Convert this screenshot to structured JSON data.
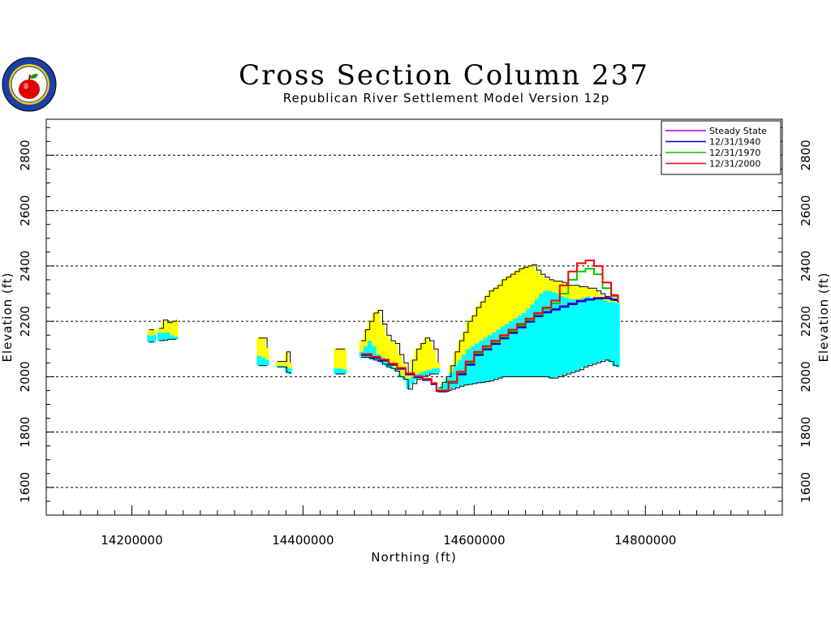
{
  "chart_data": {
    "type": "area",
    "title": "Cross Section Column 237",
    "subtitle": "Republican River Settlement Model Version 12p",
    "xlabel": "Northing (ft)",
    "ylabel": "Elevation (ft)",
    "xlim": [
      14100000,
      14960000
    ],
    "ylim": [
      1500,
      2930
    ],
    "x_ticks": [
      14200000,
      14400000,
      14600000,
      14800000
    ],
    "x_tick_labels": [
      "14200000",
      "14400000",
      "14600000",
      "14800000"
    ],
    "y_ticks": [
      1600,
      1800,
      2000,
      2200,
      2400,
      2600,
      2800
    ],
    "y_tick_labels": [
      "1600",
      "1800",
      "2000",
      "2200",
      "2400",
      "2600",
      "2800"
    ],
    "grid": "horizontal dashed at major y ticks",
    "legend_position": "top-right",
    "layer_colors": {
      "top_layer": "#ffff00",
      "lower_layer": "#00ffff",
      "outline": "#000000"
    },
    "segments": [
      {
        "x": [
          14220000,
          14226000
        ],
        "top": [
          2170,
          2170
        ],
        "mid": [
          2150,
          2150
        ],
        "bottom": [
          2125,
          2125
        ]
      },
      {
        "x": [
          14232000,
          14237000,
          14242000,
          14247000,
          14252000
        ],
        "top": [
          2175,
          2205,
          2195,
          2200,
          2205
        ],
        "mid": [
          2160,
          2158,
          2160,
          2150,
          2145
        ],
        "bottom": [
          2130,
          2132,
          2135,
          2135,
          2135
        ]
      },
      {
        "x": [
          14348000,
          14354000,
          14358000
        ],
        "top": [
          2140,
          2140,
          2105
        ],
        "mid": [
          2075,
          2070,
          2060
        ],
        "bottom": [
          2040,
          2040,
          2040
        ]
      },
      {
        "x": [
          14370000,
          14376000,
          14381000,
          14385000
        ],
        "top": [
          2055,
          2055,
          2090,
          2050
        ],
        "mid": [
          2040,
          2040,
          2035,
          2030
        ],
        "bottom": [
          2035,
          2035,
          2015,
          2010
        ]
      },
      {
        "x": [
          14438000,
          14444000,
          14449000
        ],
        "top": [
          2100,
          2100,
          2100
        ],
        "mid": [
          2030,
          2030,
          2025
        ],
        "bottom": [
          2010,
          2010,
          2010
        ]
      },
      {
        "x": [
          14468000,
          14473000,
          14478000,
          14483000,
          14488000,
          14493000,
          14498000,
          14503000,
          14508000,
          14513000,
          14518000,
          14523000,
          14528000,
          14533000,
          14538000,
          14543000,
          14548000,
          14553000,
          14558000
        ],
        "top": [
          2130,
          2170,
          2200,
          2230,
          2240,
          2190,
          2150,
          2130,
          2120,
          2080,
          2050,
          2010,
          2060,
          2100,
          2120,
          2140,
          2130,
          2100,
          2050
        ],
        "mid": [
          2090,
          2110,
          2130,
          2110,
          2080,
          2070,
          2055,
          2040,
          2030,
          2010,
          2000,
          1990,
          2000,
          2010,
          2015,
          2020,
          2025,
          2030,
          2030
        ],
        "bottom": [
          2070,
          2070,
          2065,
          2060,
          2055,
          2045,
          2035,
          2030,
          2020,
          2000,
          1990,
          1955,
          1975,
          1990,
          2000,
          2005,
          2010,
          2010,
          2015
        ]
      },
      {
        "x": [
          14558000,
          14563000,
          14568000,
          14573000,
          14578000,
          14583000,
          14588000,
          14593000,
          14598000,
          14603000,
          14608000,
          14613000,
          14618000,
          14623000,
          14628000,
          14633000,
          14638000,
          14643000,
          14648000,
          14653000,
          14658000,
          14663000,
          14668000,
          14673000,
          14678000,
          14683000,
          14688000,
          14693000,
          14698000,
          14703000,
          14708000,
          14713000,
          14718000,
          14723000,
          14728000,
          14733000,
          14738000,
          14743000,
          14748000,
          14753000,
          14758000,
          14763000,
          14768000
        ],
        "top": [
          1960,
          1980,
          2000,
          2040,
          2090,
          2130,
          2160,
          2200,
          2220,
          2250,
          2270,
          2290,
          2310,
          2320,
          2330,
          2350,
          2360,
          2370,
          2380,
          2390,
          2395,
          2400,
          2405,
          2385,
          2370,
          2360,
          2350,
          2345,
          2345,
          2340,
          2330,
          2330,
          2330,
          2325,
          2325,
          2320,
          2320,
          2310,
          2300,
          2290,
          2280,
          2275,
          2270
        ],
        "mid": [
          1955,
          1975,
          1995,
          2015,
          2040,
          2060,
          2080,
          2100,
          2110,
          2120,
          2130,
          2140,
          2150,
          2160,
          2170,
          2180,
          2190,
          2200,
          2210,
          2220,
          2230,
          2245,
          2260,
          2280,
          2300,
          2310,
          2310,
          2305,
          2300,
          2290,
          2285,
          2280,
          2280,
          2280,
          2285,
          2290,
          2285,
          2280,
          2280,
          2275,
          2270,
          2270,
          2265
        ],
        "bottom": [
          1945,
          1945,
          1950,
          1955,
          1960,
          1965,
          1970,
          1972,
          1975,
          1978,
          1980,
          1982,
          1985,
          1990,
          1995,
          2000,
          2000,
          2000,
          2000,
          2000,
          2000,
          2000,
          2000,
          2000,
          2000,
          2000,
          1995,
          1995,
          2000,
          2005,
          2010,
          2015,
          2020,
          2025,
          2035,
          2040,
          2045,
          2050,
          2055,
          2060,
          2055,
          2040,
          2035
        ]
      }
    ],
    "series": [
      {
        "name": "Steady State",
        "color": "#aa00cc",
        "x": [
          14468000,
          14480000,
          14490000,
          14500000,
          14510000,
          14520000,
          14530000,
          14540000,
          14550000,
          14556000,
          14563000,
          14570000,
          14580000,
          14590000,
          14600000,
          14610000,
          14620000,
          14630000,
          14640000,
          14650000,
          14660000,
          14670000,
          14680000,
          14690000,
          14700000,
          14710000,
          14720000,
          14730000,
          14740000,
          14750000,
          14760000,
          14768000
        ],
        "y": [
          2080,
          2070,
          2060,
          2045,
          2030,
          2010,
          2000,
          1990,
          1975,
          1950,
          1950,
          1980,
          2010,
          2045,
          2080,
          2100,
          2120,
          2140,
          2160,
          2180,
          2200,
          2220,
          2235,
          2245,
          2255,
          2265,
          2275,
          2280,
          2285,
          2285,
          2280,
          2270
        ]
      },
      {
        "name": "12/31/1940",
        "color": "#0000cc",
        "x": [
          14468000,
          14480000,
          14490000,
          14500000,
          14510000,
          14520000,
          14530000,
          14540000,
          14550000,
          14556000,
          14563000,
          14570000,
          14580000,
          14590000,
          14600000,
          14610000,
          14620000,
          14630000,
          14640000,
          14650000,
          14660000,
          14670000,
          14680000,
          14690000,
          14700000,
          14710000,
          14720000,
          14730000,
          14740000,
          14750000,
          14760000,
          14768000
        ],
        "y": [
          2078,
          2068,
          2058,
          2043,
          2028,
          2008,
          1998,
          1988,
          1973,
          1948,
          1948,
          1978,
          2008,
          2043,
          2078,
          2098,
          2118,
          2138,
          2158,
          2178,
          2198,
          2218,
          2232,
          2242,
          2252,
          2262,
          2272,
          2278,
          2282,
          2283,
          2278,
          2268
        ]
      },
      {
        "name": "12/31/1970",
        "color": "#00cc00",
        "x": [
          14556000,
          14563000,
          14570000,
          14580000,
          14590000,
          14600000,
          14610000,
          14620000,
          14630000,
          14640000,
          14650000,
          14660000,
          14670000,
          14680000,
          14690000,
          14700000,
          14710000,
          14720000,
          14730000,
          14740000,
          14750000,
          14760000,
          14768000
        ],
        "y": [
          1950,
          1950,
          1980,
          2015,
          2050,
          2085,
          2105,
          2125,
          2145,
          2165,
          2185,
          2205,
          2225,
          2245,
          2265,
          2300,
          2350,
          2380,
          2390,
          2370,
          2320,
          2290,
          2275
        ]
      },
      {
        "name": "12/31/2000",
        "color": "#ff0000",
        "x": [
          14468000,
          14480000,
          14490000,
          14500000,
          14510000,
          14520000,
          14530000,
          14540000,
          14550000,
          14556000,
          14563000,
          14570000,
          14580000,
          14590000,
          14600000,
          14610000,
          14620000,
          14630000,
          14640000,
          14650000,
          14660000,
          14670000,
          14680000,
          14690000,
          14700000,
          14710000,
          14720000,
          14730000,
          14740000,
          14750000,
          14760000,
          14768000
        ],
        "y": [
          2082,
          2072,
          2062,
          2047,
          2032,
          2012,
          2002,
          1992,
          1977,
          1950,
          1950,
          1982,
          2018,
          2055,
          2090,
          2110,
          2130,
          2150,
          2170,
          2190,
          2210,
          2230,
          2250,
          2275,
          2330,
          2380,
          2410,
          2420,
          2400,
          2340,
          2295,
          2275
        ]
      }
    ]
  }
}
